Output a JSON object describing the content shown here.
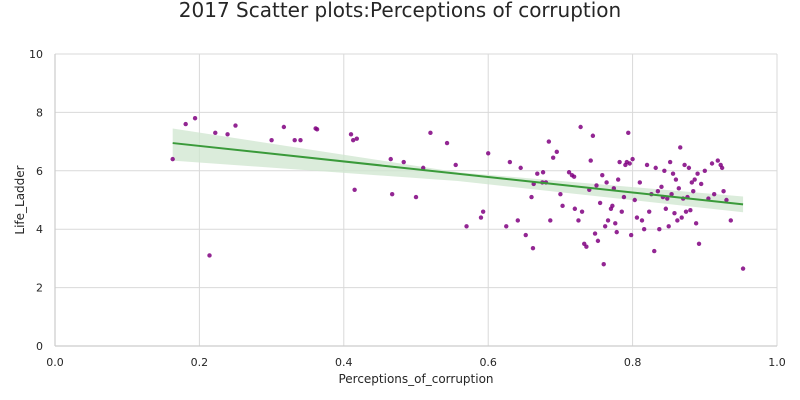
{
  "chart_data": {
    "type": "scatter",
    "title": "2017 Scatter plots:Perceptions of corruption",
    "xlabel": "Perceptions_of_corruption",
    "ylabel": "Life_Ladder",
    "xlim": [
      0.0,
      1.0
    ],
    "ylim": [
      0,
      10
    ],
    "xticks": [
      "0.0",
      "0.2",
      "0.4",
      "0.6",
      "0.8",
      "1.0"
    ],
    "yticks": [
      "0",
      "2",
      "4",
      "6",
      "8",
      "10"
    ],
    "grid": true,
    "point_color": "#800080",
    "line_color": "#3a9a3a",
    "band_color": "#cfe6cf",
    "regression": {
      "x": [
        0.163,
        0.953
      ],
      "y": [
        6.95,
        4.85
      ],
      "ci_upper_start": 7.45,
      "ci_lower_start": 6.35,
      "ci_upper_mid": 5.95,
      "ci_lower_mid": 5.65,
      "ci_upper_end": 5.12,
      "ci_lower_end": 4.58
    },
    "points": [
      [
        0.163,
        6.4
      ],
      [
        0.181,
        7.6
      ],
      [
        0.194,
        7.8
      ],
      [
        0.214,
        3.1
      ],
      [
        0.222,
        7.3
      ],
      [
        0.239,
        7.25
      ],
      [
        0.25,
        7.55
      ],
      [
        0.3,
        7.05
      ],
      [
        0.317,
        7.5
      ],
      [
        0.332,
        7.05
      ],
      [
        0.34,
        7.05
      ],
      [
        0.361,
        7.45
      ],
      [
        0.363,
        7.42
      ],
      [
        0.41,
        7.25
      ],
      [
        0.413,
        7.05
      ],
      [
        0.418,
        7.1
      ],
      [
        0.415,
        5.35
      ],
      [
        0.465,
        6.4
      ],
      [
        0.467,
        5.2
      ],
      [
        0.483,
        6.3
      ],
      [
        0.5,
        5.1
      ],
      [
        0.51,
        6.1
      ],
      [
        0.52,
        7.3
      ],
      [
        0.543,
        6.95
      ],
      [
        0.555,
        6.2
      ],
      [
        0.57,
        4.1
      ],
      [
        0.59,
        4.4
      ],
      [
        0.593,
        4.6
      ],
      [
        0.6,
        6.6
      ],
      [
        0.625,
        4.1
      ],
      [
        0.63,
        6.3
      ],
      [
        0.641,
        4.3
      ],
      [
        0.645,
        6.1
      ],
      [
        0.652,
        3.8
      ],
      [
        0.66,
        5.1
      ],
      [
        0.662,
        3.35
      ],
      [
        0.663,
        5.55
      ],
      [
        0.668,
        5.9
      ],
      [
        0.675,
        5.6
      ],
      [
        0.676,
        5.95
      ],
      [
        0.68,
        5.6
      ],
      [
        0.684,
        7.0
      ],
      [
        0.686,
        4.3
      ],
      [
        0.69,
        6.45
      ],
      [
        0.695,
        6.65
      ],
      [
        0.7,
        5.2
      ],
      [
        0.703,
        4.8
      ],
      [
        0.712,
        5.95
      ],
      [
        0.716,
        5.85
      ],
      [
        0.719,
        5.8
      ],
      [
        0.72,
        4.7
      ],
      [
        0.725,
        4.3
      ],
      [
        0.728,
        7.5
      ],
      [
        0.73,
        4.6
      ],
      [
        0.733,
        3.5
      ],
      [
        0.736,
        3.4
      ],
      [
        0.74,
        5.35
      ],
      [
        0.742,
        6.35
      ],
      [
        0.745,
        7.2
      ],
      [
        0.748,
        3.85
      ],
      [
        0.75,
        5.5
      ],
      [
        0.752,
        3.6
      ],
      [
        0.755,
        4.9
      ],
      [
        0.758,
        5.85
      ],
      [
        0.76,
        2.8
      ],
      [
        0.762,
        4.1
      ],
      [
        0.764,
        5.6
      ],
      [
        0.766,
        4.3
      ],
      [
        0.77,
        4.7
      ],
      [
        0.772,
        4.8
      ],
      [
        0.774,
        5.4
      ],
      [
        0.776,
        4.2
      ],
      [
        0.778,
        3.9
      ],
      [
        0.78,
        5.7
      ],
      [
        0.782,
        6.3
      ],
      [
        0.785,
        4.6
      ],
      [
        0.788,
        5.1
      ],
      [
        0.79,
        6.2
      ],
      [
        0.792,
        6.3
      ],
      [
        0.794,
        7.3
      ],
      [
        0.796,
        6.25
      ],
      [
        0.798,
        3.8
      ],
      [
        0.8,
        6.4
      ],
      [
        0.803,
        5.0
      ],
      [
        0.806,
        4.4
      ],
      [
        0.81,
        5.6
      ],
      [
        0.813,
        4.3
      ],
      [
        0.816,
        4.0
      ],
      [
        0.82,
        6.2
      ],
      [
        0.823,
        4.6
      ],
      [
        0.826,
        5.2
      ],
      [
        0.83,
        3.25
      ],
      [
        0.832,
        6.1
      ],
      [
        0.835,
        5.3
      ],
      [
        0.837,
        4.0
      ],
      [
        0.84,
        5.45
      ],
      [
        0.842,
        5.1
      ],
      [
        0.844,
        6.0
      ],
      [
        0.846,
        4.7
      ],
      [
        0.848,
        5.05
      ],
      [
        0.85,
        4.1
      ],
      [
        0.852,
        6.3
      ],
      [
        0.854,
        5.2
      ],
      [
        0.856,
        5.9
      ],
      [
        0.858,
        4.55
      ],
      [
        0.86,
        5.7
      ],
      [
        0.862,
        4.3
      ],
      [
        0.864,
        5.4
      ],
      [
        0.866,
        6.8
      ],
      [
        0.868,
        4.4
      ],
      [
        0.87,
        5.05
      ],
      [
        0.872,
        6.2
      ],
      [
        0.874,
        4.6
      ],
      [
        0.876,
        5.1
      ],
      [
        0.878,
        6.1
      ],
      [
        0.88,
        4.65
      ],
      [
        0.882,
        5.6
      ],
      [
        0.884,
        5.3
      ],
      [
        0.886,
        5.7
      ],
      [
        0.888,
        4.2
      ],
      [
        0.89,
        5.9
      ],
      [
        0.892,
        3.5
      ],
      [
        0.895,
        5.55
      ],
      [
        0.9,
        6.0
      ],
      [
        0.905,
        5.05
      ],
      [
        0.91,
        6.25
      ],
      [
        0.913,
        5.2
      ],
      [
        0.918,
        6.35
      ],
      [
        0.922,
        6.2
      ],
      [
        0.924,
        6.1
      ],
      [
        0.926,
        5.3
      ],
      [
        0.93,
        5.0
      ],
      [
        0.936,
        4.3
      ],
      [
        0.953,
        2.65
      ]
    ]
  }
}
